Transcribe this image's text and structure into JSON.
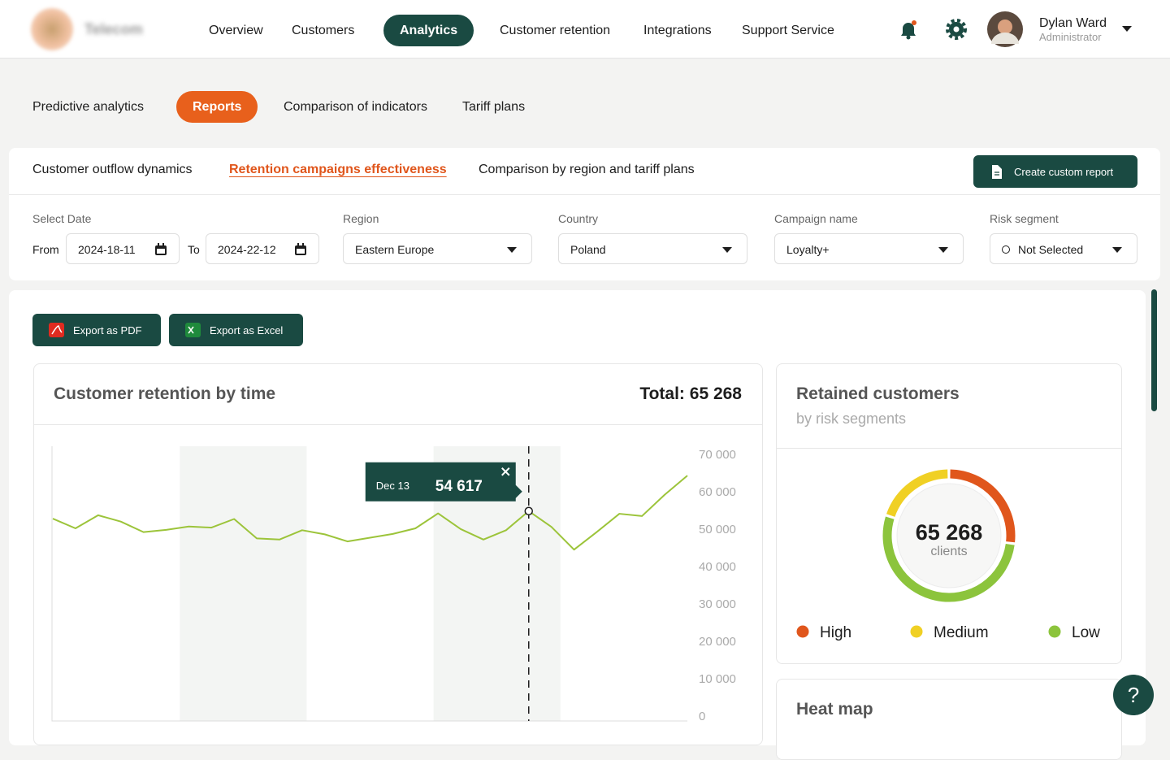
{
  "nav": {
    "brand": "Telecom",
    "items": [
      "Overview",
      "Customers",
      "Analytics",
      "Customer retention",
      "Integrations",
      "Support Service"
    ],
    "active": 2,
    "user": {
      "name": "Dylan Ward",
      "role": "Administrator"
    }
  },
  "subnav": {
    "items": [
      "Predictive analytics",
      "Reports",
      "Comparison of indicators",
      "Tariff plans"
    ],
    "active": 1
  },
  "tabs": {
    "items": [
      "Customer outflow dynamics",
      "Retention campaigns effectiveness",
      "Comparison by region and tariff plans"
    ],
    "active": 1,
    "button": "Create custom report"
  },
  "filters": {
    "date": {
      "label": "Select Date",
      "from_label": "From",
      "from": "2024-18-11",
      "to_label": "To",
      "to": "2024-22-12"
    },
    "region": {
      "label": "Region",
      "value": "Eastern Europe"
    },
    "country": {
      "label": "Country",
      "value": "Poland"
    },
    "campaign": {
      "label": "Campaign name",
      "value": "Loyalty+"
    },
    "risk": {
      "label": "Risk segment",
      "value": "Not Selected"
    }
  },
  "export": [
    "Export as PDF",
    "Export as Excel"
  ],
  "chart_data": [
    {
      "type": "line",
      "title": "Customer retention by time",
      "total": "Total: 65 268",
      "color": "#9cc43a",
      "grid": false,
      "categories": [
        null,
        null,
        null,
        null,
        null,
        null,
        null,
        null,
        null,
        null,
        null,
        null,
        null,
        null,
        null,
        null,
        null,
        null,
        null,
        null,
        null,
        "Dec 13",
        null,
        null,
        null,
        null,
        null,
        null,
        null
      ],
      "values": [
        52600,
        50000,
        53500,
        51800,
        49000,
        49600,
        50500,
        50200,
        52500,
        47300,
        47000,
        49500,
        48400,
        46500,
        47500,
        48500,
        50000,
        54000,
        49800,
        47000,
        49500,
        54617,
        50400,
        44300,
        49000,
        53900,
        53300,
        59000,
        64100
      ],
      "value_labels": [
        null,
        null,
        null,
        null,
        null,
        null,
        null,
        null,
        null,
        null,
        null,
        null,
        null,
        null,
        null,
        null,
        null,
        null,
        null,
        null,
        null,
        "54 617",
        null,
        null,
        null,
        null,
        null,
        null,
        null
      ],
      "ylim": [
        0,
        70000
      ],
      "yticks": [
        0,
        {
          "value": 10000,
          "label": "10 000"
        },
        {
          "value": 20000,
          "label": "20 000"
        },
        {
          "value": 30000,
          "label": "30 000"
        },
        {
          "value": 40000,
          "label": "40 000"
        },
        {
          "value": 50000,
          "label": "50 000"
        },
        {
          "value": 60000,
          "label": "60 000"
        },
        {
          "value": 70000,
          "label": "70 000"
        }
      ]
    },
    {
      "type": "donut",
      "title": "Retained customers",
      "subtitle": "by risk segments",
      "center_value": "65 268",
      "center_label": "clients",
      "categories": [
        "High",
        "Medium",
        "Low"
      ],
      "values": [
        17600,
        13050,
        34618
      ],
      "colors": [
        "#e0561c",
        "#f0d024",
        "#8cc43c"
      ]
    }
  ],
  "heatmap": {
    "title": "Heat map"
  },
  "help": "?"
}
